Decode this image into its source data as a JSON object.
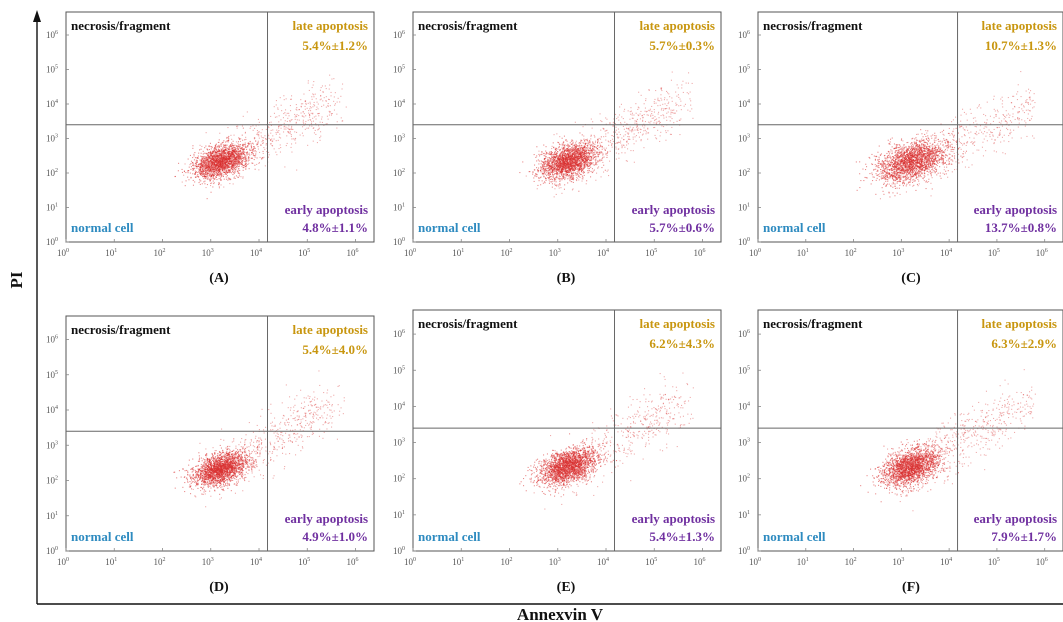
{
  "figure": {
    "x_title": "Annexvin V",
    "y_title": "PI"
  },
  "colors": {
    "necrosis": "#111111",
    "late": "#c8960f",
    "early": "#7030a0",
    "normal": "#2e8bc0",
    "dots": "#d83030",
    "frame": "#555555"
  },
  "chart_data": [
    {
      "type": "scatter",
      "panel": "(A)",
      "xlabel": "Annexvin V",
      "ylabel": "PI",
      "x_scale": "log",
      "y_scale": "log",
      "xlim": [
        1,
        1000000
      ],
      "ylim": [
        1,
        1000000
      ],
      "gate": {
        "x": 15000,
        "y": 2500
      },
      "quadrants": {
        "top_left": "necrosis/fragment",
        "top_right": "late apoptosis",
        "bottom_left": "normal cell",
        "bottom_right": "early apoptosis"
      },
      "late_value": "5.4%±1.2%",
      "early_value": "4.8%±1.1%",
      "tick_base": "10",
      "tick_exponents": [
        "0",
        "1",
        "2",
        "3",
        "4",
        "5",
        "6"
      ]
    },
    {
      "type": "scatter",
      "panel": "(B)",
      "xlabel": "Annexvin V",
      "ylabel": "PI",
      "x_scale": "log",
      "y_scale": "log",
      "xlim": [
        1,
        1000000
      ],
      "ylim": [
        1,
        1000000
      ],
      "gate": {
        "x": 15000,
        "y": 2500
      },
      "quadrants": {
        "top_left": "necrosis/fragment",
        "top_right": "late apoptosis",
        "bottom_left": "normal cell",
        "bottom_right": "early apoptosis"
      },
      "late_value": "5.7%±0.3%",
      "early_value": "5.7%±0.6%",
      "tick_base": "10",
      "tick_exponents": [
        "0",
        "1",
        "2",
        "3",
        "4",
        "5",
        "6"
      ]
    },
    {
      "type": "scatter",
      "panel": "(C)",
      "xlabel": "Annexvin V",
      "ylabel": "PI",
      "x_scale": "log",
      "y_scale": "log",
      "xlim": [
        1,
        1000000
      ],
      "ylim": [
        1,
        1000000
      ],
      "gate": {
        "x": 15000,
        "y": 2500
      },
      "quadrants": {
        "top_left": "necrosis/fragment",
        "top_right": "late apoptosis",
        "bottom_left": "normal cell",
        "bottom_right": "early apoptosis"
      },
      "late_value": "10.7%±1.3%",
      "early_value": "13.7%±0.8%",
      "tick_base": "10",
      "tick_exponents": [
        "0",
        "1",
        "2",
        "3",
        "4",
        "5",
        "6"
      ]
    },
    {
      "type": "scatter",
      "panel": "(D)",
      "xlabel": "Annexvin V",
      "ylabel": "PI",
      "x_scale": "log",
      "y_scale": "log",
      "xlim": [
        1,
        1000000
      ],
      "ylim": [
        1,
        1000000
      ],
      "gate": {
        "x": 15000,
        "y": 2500
      },
      "quadrants": {
        "top_left": "necrosis/fragment",
        "top_right": "late apoptosis",
        "bottom_left": "normal cell",
        "bottom_right": "early apoptosis"
      },
      "late_value": "5.4%±4.0%",
      "early_value": "4.9%±1.0%",
      "tick_base": "10",
      "tick_exponents": [
        "0",
        "1",
        "2",
        "3",
        "4",
        "5",
        "6"
      ]
    },
    {
      "type": "scatter",
      "panel": "(E)",
      "xlabel": "Annexvin V",
      "ylabel": "PI",
      "x_scale": "log",
      "y_scale": "log",
      "xlim": [
        1,
        1000000
      ],
      "ylim": [
        1,
        1000000
      ],
      "gate": {
        "x": 15000,
        "y": 2500
      },
      "quadrants": {
        "top_left": "necrosis/fragment",
        "top_right": "late apoptosis",
        "bottom_left": "normal cell",
        "bottom_right": "early apoptosis"
      },
      "late_value": "6.2%±4.3%",
      "early_value": "5.4%±1.3%",
      "tick_base": "10",
      "tick_exponents": [
        "0",
        "1",
        "2",
        "3",
        "4",
        "5",
        "6"
      ]
    },
    {
      "type": "scatter",
      "panel": "(F)",
      "xlabel": "Annexvin V",
      "ylabel": "PI",
      "x_scale": "log",
      "y_scale": "log",
      "xlim": [
        1,
        1000000
      ],
      "ylim": [
        1,
        1000000
      ],
      "gate": {
        "x": 15000,
        "y": 2500
      },
      "quadrants": {
        "top_left": "necrosis/fragment",
        "top_right": "late apoptosis",
        "bottom_left": "normal cell",
        "bottom_right": "early apoptosis"
      },
      "late_value": "6.3%±2.9%",
      "early_value": "7.9%±1.7%",
      "tick_base": "10",
      "tick_exponents": [
        "0",
        "1",
        "2",
        "3",
        "4",
        "5",
        "6"
      ]
    }
  ]
}
